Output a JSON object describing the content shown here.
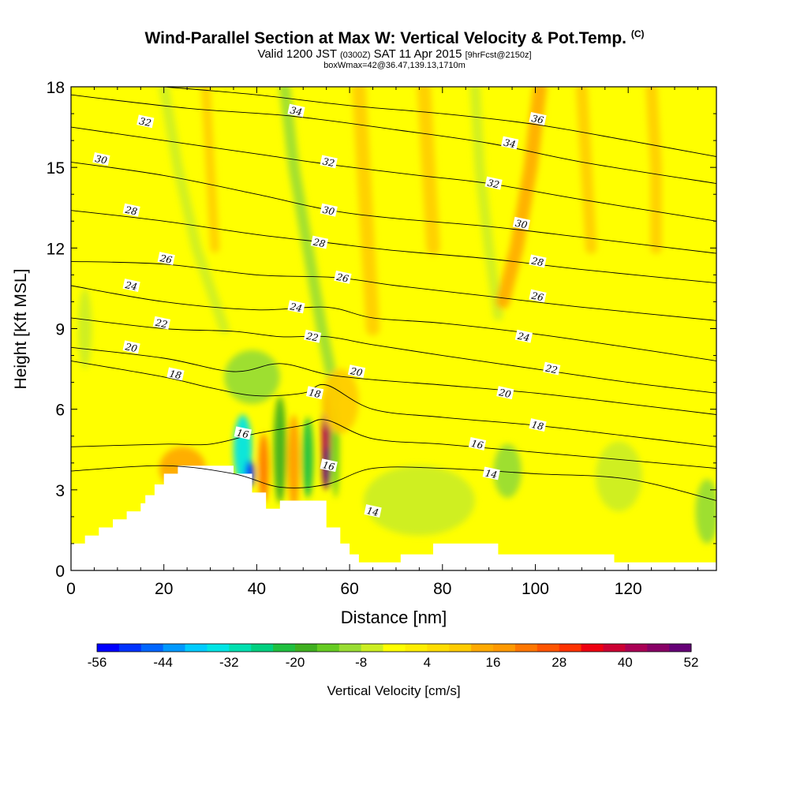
{
  "chart_data": {
    "type": "heatmap",
    "title": "Wind-Parallel Section at Max W: Vertical Velocity & Pot.Temp.",
    "title_mark": "(C)",
    "subtitle": {
      "valid": "Valid 1200 JST",
      "utc": "(0300Z)",
      "date": "SAT 11 Apr 2015",
      "forecast": "[9hrFcst@2150z]"
    },
    "box_label": "boxWmax=42@36.47,139.13,1710m",
    "xlabel": "Distance [nm]",
    "ylabel": "Height [Kft MSL]",
    "xlim": [
      0,
      139
    ],
    "ylim": [
      0,
      18
    ],
    "xticks": [
      0,
      20,
      40,
      60,
      80,
      100,
      120
    ],
    "yticks": [
      0,
      3,
      6,
      9,
      12,
      15,
      18
    ],
    "colorbar": {
      "label": "Vertical Velocity [cm/s]",
      "tick_labels": [
        -56,
        -44,
        -32,
        -20,
        -8,
        4,
        16,
        28,
        40,
        52
      ],
      "colors": [
        "#0000ff",
        "#0033ff",
        "#0066ff",
        "#0099ff",
        "#00ccff",
        "#00e5e5",
        "#00e0b0",
        "#00d080",
        "#20c040",
        "#40b020",
        "#66cc22",
        "#99dd33",
        "#ccee22",
        "#ffff00",
        "#ffee00",
        "#ffdd00",
        "#ffcc00",
        "#ffaa00",
        "#ff9900",
        "#ff7700",
        "#ff5500",
        "#ff3300",
        "#ee0011",
        "#cc0033",
        "#aa0055",
        "#880066",
        "#660077"
      ]
    },
    "theta_contours": [
      {
        "label": "14",
        "points": [
          [
            0,
            3.7
          ],
          [
            20,
            3.9
          ],
          [
            35,
            3.6
          ],
          [
            45,
            3.1
          ],
          [
            55,
            3.2
          ],
          [
            65,
            3.8
          ],
          [
            80,
            3.8
          ],
          [
            100,
            3.6
          ],
          [
            120,
            3.4
          ],
          [
            139,
            2.6
          ]
        ]
      },
      {
        "label": "16",
        "points": [
          [
            0,
            4.6
          ],
          [
            20,
            4.7
          ],
          [
            30,
            4.7
          ],
          [
            40,
            5.1
          ],
          [
            50,
            5.4
          ],
          [
            55,
            5.6
          ],
          [
            65,
            4.9
          ],
          [
            80,
            4.7
          ],
          [
            100,
            4.4
          ],
          [
            120,
            4.1
          ],
          [
            139,
            3.8
          ]
        ]
      },
      {
        "label": "18",
        "points": [
          [
            0,
            7.8
          ],
          [
            20,
            7.2
          ],
          [
            30,
            6.8
          ],
          [
            40,
            6.5
          ],
          [
            50,
            6.6
          ],
          [
            55,
            6.9
          ],
          [
            65,
            6.0
          ],
          [
            80,
            5.7
          ],
          [
            100,
            5.4
          ],
          [
            120,
            5.0
          ],
          [
            139,
            4.6
          ]
        ]
      },
      {
        "label": "20",
        "points": [
          [
            0,
            8.3
          ],
          [
            20,
            7.9
          ],
          [
            35,
            7.4
          ],
          [
            45,
            7.7
          ],
          [
            55,
            7.3
          ],
          [
            65,
            7.1
          ],
          [
            80,
            6.9
          ],
          [
            100,
            6.6
          ],
          [
            120,
            6.2
          ],
          [
            139,
            5.8
          ]
        ]
      },
      {
        "label": "22",
        "points": [
          [
            0,
            9.4
          ],
          [
            20,
            9.0
          ],
          [
            35,
            8.9
          ],
          [
            45,
            8.7
          ],
          [
            55,
            8.7
          ],
          [
            65,
            8.4
          ],
          [
            80,
            8.0
          ],
          [
            100,
            7.5
          ],
          [
            120,
            7.0
          ],
          [
            139,
            6.6
          ]
        ]
      },
      {
        "label": "24",
        "points": [
          [
            0,
            10.6
          ],
          [
            20,
            10.0
          ],
          [
            40,
            9.7
          ],
          [
            55,
            9.8
          ],
          [
            65,
            9.4
          ],
          [
            80,
            9.2
          ],
          [
            100,
            8.8
          ],
          [
            120,
            8.3
          ],
          [
            139,
            7.8
          ]
        ]
      },
      {
        "label": "26",
        "points": [
          [
            0,
            11.5
          ],
          [
            20,
            11.4
          ],
          [
            40,
            11.0
          ],
          [
            57,
            10.9
          ],
          [
            70,
            10.6
          ],
          [
            90,
            10.2
          ],
          [
            110,
            9.8
          ],
          [
            139,
            9.3
          ]
        ]
      },
      {
        "label": "28",
        "points": [
          [
            0,
            13.4
          ],
          [
            20,
            13.0
          ],
          [
            40,
            12.5
          ],
          [
            55,
            12.2
          ],
          [
            70,
            11.9
          ],
          [
            90,
            11.6
          ],
          [
            110,
            11.2
          ],
          [
            139,
            10.7
          ]
        ]
      },
      {
        "label": "30",
        "points": [
          [
            0,
            15.2
          ],
          [
            20,
            14.7
          ],
          [
            40,
            14.0
          ],
          [
            56,
            13.4
          ],
          [
            70,
            13.1
          ],
          [
            90,
            12.8
          ],
          [
            110,
            12.4
          ],
          [
            139,
            11.8
          ]
        ]
      },
      {
        "label": "32",
        "points": [
          [
            0,
            16.5
          ],
          [
            20,
            16.0
          ],
          [
            40,
            15.5
          ],
          [
            56,
            15.1
          ],
          [
            75,
            14.7
          ],
          [
            90,
            14.4
          ],
          [
            110,
            13.8
          ],
          [
            139,
            13.0
          ]
        ]
      },
      {
        "label": "34",
        "points": [
          [
            0,
            17.7
          ],
          [
            25,
            17.2
          ],
          [
            48,
            16.9
          ],
          [
            70,
            16.4
          ],
          [
            90,
            15.9
          ],
          [
            110,
            15.2
          ],
          [
            139,
            14.4
          ]
        ]
      },
      {
        "label": "36",
        "points": [
          [
            20,
            18.0
          ],
          [
            40,
            17.7
          ],
          [
            60,
            17.3
          ],
          [
            80,
            17.0
          ],
          [
            100,
            16.6
          ],
          [
            120,
            16.0
          ],
          [
            139,
            15.4
          ]
        ]
      }
    ],
    "contour_labels": [
      {
        "text": "32",
        "x": 16,
        "y": 16.7
      },
      {
        "text": "30",
        "x": 6.5,
        "y": 15.3
      },
      {
        "text": "28",
        "x": 13,
        "y": 13.4
      },
      {
        "text": "26",
        "x": 20.5,
        "y": 11.6
      },
      {
        "text": "24",
        "x": 13,
        "y": 10.6
      },
      {
        "text": "22",
        "x": 19.5,
        "y": 9.2
      },
      {
        "text": "20",
        "x": 13,
        "y": 8.3
      },
      {
        "text": "18",
        "x": 22.5,
        "y": 7.3
      },
      {
        "text": "16",
        "x": 37,
        "y": 5.1
      },
      {
        "text": "34",
        "x": 48.5,
        "y": 17.1
      },
      {
        "text": "32",
        "x": 55.5,
        "y": 15.2
      },
      {
        "text": "30",
        "x": 55.5,
        "y": 13.4
      },
      {
        "text": "28",
        "x": 53.5,
        "y": 12.2
      },
      {
        "text": "26",
        "x": 58.5,
        "y": 10.9
      },
      {
        "text": "24",
        "x": 48.5,
        "y": 9.8
      },
      {
        "text": "22",
        "x": 52,
        "y": 8.7
      },
      {
        "text": "18",
        "x": 52.5,
        "y": 6.6
      },
      {
        "text": "20",
        "x": 61.5,
        "y": 7.4
      },
      {
        "text": "16",
        "x": 55.5,
        "y": 3.9
      },
      {
        "text": "14",
        "x": 65,
        "y": 2.2
      },
      {
        "text": "36",
        "x": 100.5,
        "y": 16.8
      },
      {
        "text": "34",
        "x": 94.5,
        "y": 15.9
      },
      {
        "text": "32",
        "x": 91,
        "y": 14.4
      },
      {
        "text": "30",
        "x": 97,
        "y": 12.9
      },
      {
        "text": "28",
        "x": 100.5,
        "y": 11.5
      },
      {
        "text": "26",
        "x": 100.5,
        "y": 10.2
      },
      {
        "text": "24",
        "x": 97.5,
        "y": 8.7
      },
      {
        "text": "22",
        "x": 103.5,
        "y": 7.5
      },
      {
        "text": "20",
        "x": 93.5,
        "y": 6.6
      },
      {
        "text": "18",
        "x": 100.5,
        "y": 5.4
      },
      {
        "text": "16",
        "x": 87.5,
        "y": 4.7
      },
      {
        "text": "14",
        "x": 90.5,
        "y": 3.6
      }
    ],
    "terrain": [
      [
        0,
        1.0
      ],
      [
        3,
        1.0
      ],
      [
        3,
        1.3
      ],
      [
        6,
        1.3
      ],
      [
        6,
        1.6
      ],
      [
        9,
        1.6
      ],
      [
        9,
        1.9
      ],
      [
        12,
        1.9
      ],
      [
        12,
        2.2
      ],
      [
        15,
        2.2
      ],
      [
        15,
        2.5
      ],
      [
        16,
        2.5
      ],
      [
        16,
        2.8
      ],
      [
        18,
        2.8
      ],
      [
        18,
        3.2
      ],
      [
        20,
        3.2
      ],
      [
        20,
        3.6
      ],
      [
        23,
        3.6
      ],
      [
        23,
        3.9
      ],
      [
        35,
        3.9
      ],
      [
        35,
        3.6
      ],
      [
        39,
        3.6
      ],
      [
        39,
        2.9
      ],
      [
        42,
        2.9
      ],
      [
        42,
        2.3
      ],
      [
        45,
        2.3
      ],
      [
        45,
        2.6
      ],
      [
        55,
        2.6
      ],
      [
        55,
        1.6
      ],
      [
        58,
        1.6
      ],
      [
        58,
        1.0
      ],
      [
        60,
        1.0
      ],
      [
        60,
        0.6
      ],
      [
        62,
        0.6
      ],
      [
        62,
        0.3
      ],
      [
        71,
        0.3
      ],
      [
        71,
        0.6
      ],
      [
        78,
        0.6
      ],
      [
        78,
        1.0
      ],
      [
        92,
        1.0
      ],
      [
        92,
        0.6
      ],
      [
        117,
        0.6
      ],
      [
        117,
        0.3
      ],
      [
        139,
        0.3
      ]
    ],
    "w_features": [
      {
        "x": 37,
        "y": 4.5,
        "sx": 2.0,
        "sy": 1.3,
        "w": -34
      },
      {
        "x": 38.5,
        "y": 3.6,
        "sx": 1.0,
        "sy": 0.5,
        "w": -50
      },
      {
        "x": 45,
        "y": 4.5,
        "sx": 1.4,
        "sy": 2.0,
        "w": -20
      },
      {
        "x": 41.5,
        "y": 3.8,
        "sx": 1.1,
        "sy": 1.3,
        "w": 22
      },
      {
        "x": 48,
        "y": 4.0,
        "sx": 1.2,
        "sy": 1.8,
        "w": 18
      },
      {
        "x": 51,
        "y": 4.2,
        "sx": 1.2,
        "sy": 1.5,
        "w": -22
      },
      {
        "x": 55,
        "y": 5.0,
        "sx": 1.0,
        "sy": 1.6,
        "w": 44
      },
      {
        "x": 55,
        "y": 3.8,
        "sx": 0.9,
        "sy": 0.8,
        "w": 52
      },
      {
        "x": 57,
        "y": 4.5,
        "sx": 0.8,
        "sy": 1.8,
        "w": -14
      },
      {
        "x": 24,
        "y": 3.8,
        "sx": 5.0,
        "sy": 0.8,
        "w": 14
      },
      {
        "x": 39,
        "y": 7.2,
        "sx": 6.0,
        "sy": 1.0,
        "w": -9
      },
      {
        "x": 58,
        "y": 6.3,
        "sx": 4.0,
        "sy": 1.2,
        "w": 10
      },
      {
        "x": 75,
        "y": 2.6,
        "sx": 12.0,
        "sy": 1.3,
        "w": -7
      },
      {
        "x": 94,
        "y": 3.7,
        "sx": 3.0,
        "sy": 1.0,
        "w": -12
      },
      {
        "x": 118,
        "y": 3.5,
        "sx": 5.0,
        "sy": 1.3,
        "w": -7
      },
      {
        "x": 137,
        "y": 2.2,
        "sx": 2.5,
        "sy": 1.2,
        "w": -9
      },
      {
        "x": 3,
        "y": 9.0,
        "sx": 1.5,
        "sy": 1.5,
        "w": -7
      }
    ],
    "w_streaks": [
      {
        "points": [
          [
            20,
            18
          ],
          [
            23,
            15
          ],
          [
            27,
            12
          ],
          [
            33,
            9
          ]
        ],
        "width": 2.2,
        "w": -8
      },
      {
        "points": [
          [
            29,
            18
          ],
          [
            30,
            15
          ],
          [
            31,
            12
          ]
        ],
        "width": 2.0,
        "w": 10
      },
      {
        "points": [
          [
            46,
            18
          ],
          [
            48,
            15
          ],
          [
            51,
            12
          ],
          [
            54,
            9
          ],
          [
            57,
            6.5
          ]
        ],
        "width": 2.4,
        "w": -10
      },
      {
        "points": [
          [
            62,
            18
          ],
          [
            63,
            15
          ],
          [
            64,
            12
          ],
          [
            65,
            9
          ]
        ],
        "width": 3.0,
        "w": 10
      },
      {
        "points": [
          [
            76,
            18
          ],
          [
            77,
            15
          ],
          [
            78,
            12
          ]
        ],
        "width": 3.0,
        "w": 9
      },
      {
        "points": [
          [
            87,
            18
          ],
          [
            88,
            15
          ],
          [
            90,
            12
          ],
          [
            92,
            9.5
          ]
        ],
        "width": 2.2,
        "w": -6
      },
      {
        "points": [
          [
            101,
            18
          ],
          [
            99,
            15
          ],
          [
            96,
            12
          ],
          [
            93,
            10
          ]
        ],
        "width": 3.0,
        "w": 14
      },
      {
        "points": [
          [
            110,
            18
          ],
          [
            111,
            15
          ],
          [
            112,
            12
          ]
        ],
        "width": 2.5,
        "w": 9
      },
      {
        "points": [
          [
            125,
            18
          ],
          [
            126,
            15
          ],
          [
            126,
            12
          ]
        ],
        "width": 2.5,
        "w": 10
      }
    ]
  }
}
